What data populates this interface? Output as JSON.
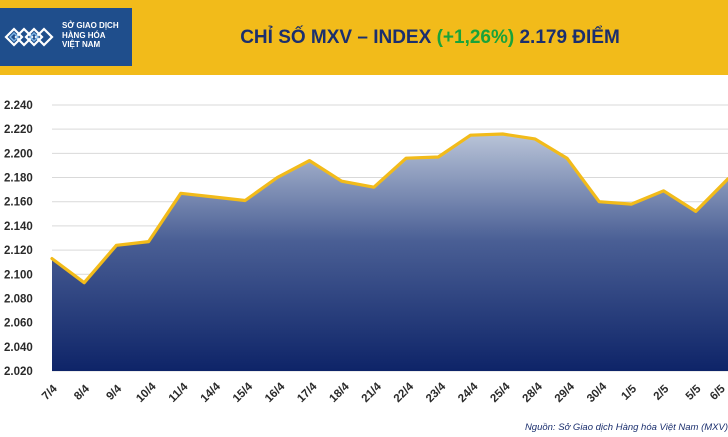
{
  "header": {
    "logo_lines": [
      "SỞ GIAO DỊCH",
      "HÀNG HÓA",
      "VIỆT NAM"
    ],
    "title_prefix": "CHỈ SỐ MXV – INDEX",
    "title_change": "(+1,26%)",
    "title_value": "2.179 ĐIỂM",
    "change_color": "#19a33a",
    "title_color": "#1b2f6e",
    "band_color": "#f2bb1a",
    "logo_bg_color": "#1f4e8c"
  },
  "source": "Nguồn: Sở Giao dịch Hàng hóa Việt Nam (MXV)",
  "chart_data": {
    "type": "area",
    "x": [
      "7/4",
      "8/4",
      "9/4",
      "10/4",
      "11/4",
      "14/4",
      "15/4",
      "16/4",
      "17/4",
      "18/4",
      "21/4",
      "22/4",
      "23/4",
      "24/4",
      "25/4",
      "28/4",
      "29/4",
      "30/4",
      "1/5",
      "2/5",
      "5/5",
      "6/5"
    ],
    "values": [
      2113,
      2093,
      2124,
      2127,
      2167,
      2164,
      2161,
      2180,
      2194,
      2177,
      2172,
      2196,
      2197,
      2215,
      2216,
      2212,
      2196,
      2160,
      2158,
      2169,
      2152,
      2179
    ],
    "yticks": [
      "2.020",
      "2.040",
      "2.060",
      "2.080",
      "2.100",
      "2.120",
      "2.140",
      "2.160",
      "2.180",
      "2.200",
      "2.220",
      "2.240"
    ],
    "ylim": [
      2020,
      2240
    ],
    "grid": true,
    "line_color": "#f2bb1a",
    "fill_top_color": "#b9c4d8",
    "fill_bottom_color": "#0e2468"
  }
}
